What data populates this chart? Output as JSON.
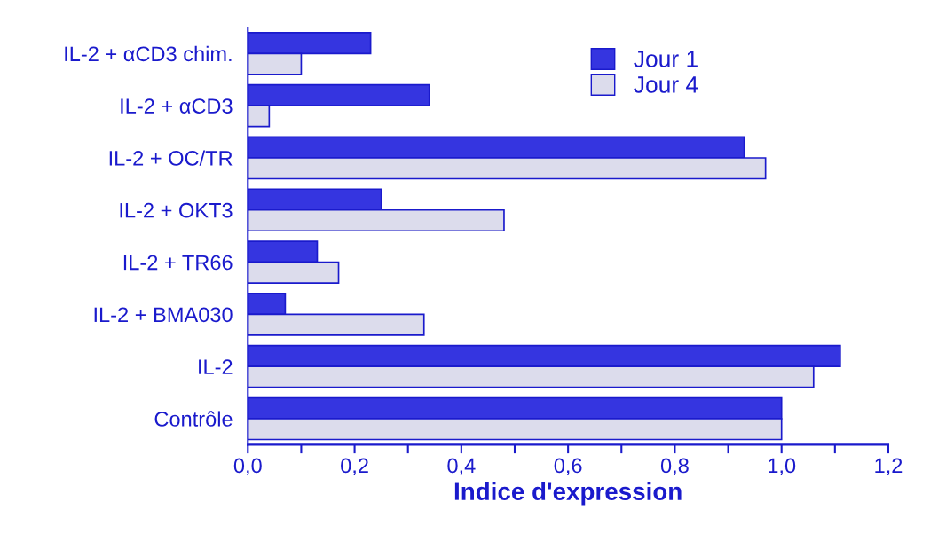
{
  "chart_data": {
    "type": "bar",
    "orientation": "horizontal",
    "xlabel": "Indice d'expression",
    "categories": [
      "IL-2 + αCD3 chim.",
      "IL-2 + αCD3",
      "IL-2 + OC/TR",
      "IL-2 + OKT3",
      "IL-2 + TR66",
      "IL-2 + BMA030",
      "IL-2",
      "Contrôle"
    ],
    "series": [
      {
        "name": "Jour 1",
        "color": "#3535e0",
        "values": [
          0.23,
          0.34,
          0.93,
          0.25,
          0.13,
          0.07,
          1.11,
          1.0
        ]
      },
      {
        "name": "Jour 4",
        "color": "#dcdcec",
        "values": [
          0.1,
          0.04,
          0.97,
          0.48,
          0.17,
          0.33,
          1.06,
          1.0
        ]
      }
    ],
    "xlim": [
      0,
      1.2
    ],
    "xticks": [
      {
        "value": 0,
        "label": "0,0"
      },
      {
        "value": 0.1,
        "label": null
      },
      {
        "value": 0.2,
        "label": "0,2"
      },
      {
        "value": 0.3,
        "label": null
      },
      {
        "value": 0.4,
        "label": "0,4"
      },
      {
        "value": 0.5,
        "label": null
      },
      {
        "value": 0.6,
        "label": "0,6"
      },
      {
        "value": 0.7,
        "label": null
      },
      {
        "value": 0.8,
        "label": "0,8"
      },
      {
        "value": 0.9,
        "label": null
      },
      {
        "value": 1.0,
        "label": "1,0"
      },
      {
        "value": 1.1,
        "label": null
      },
      {
        "value": 1.2,
        "label": "1,2"
      }
    ],
    "legend": "top",
    "grid": false
  }
}
